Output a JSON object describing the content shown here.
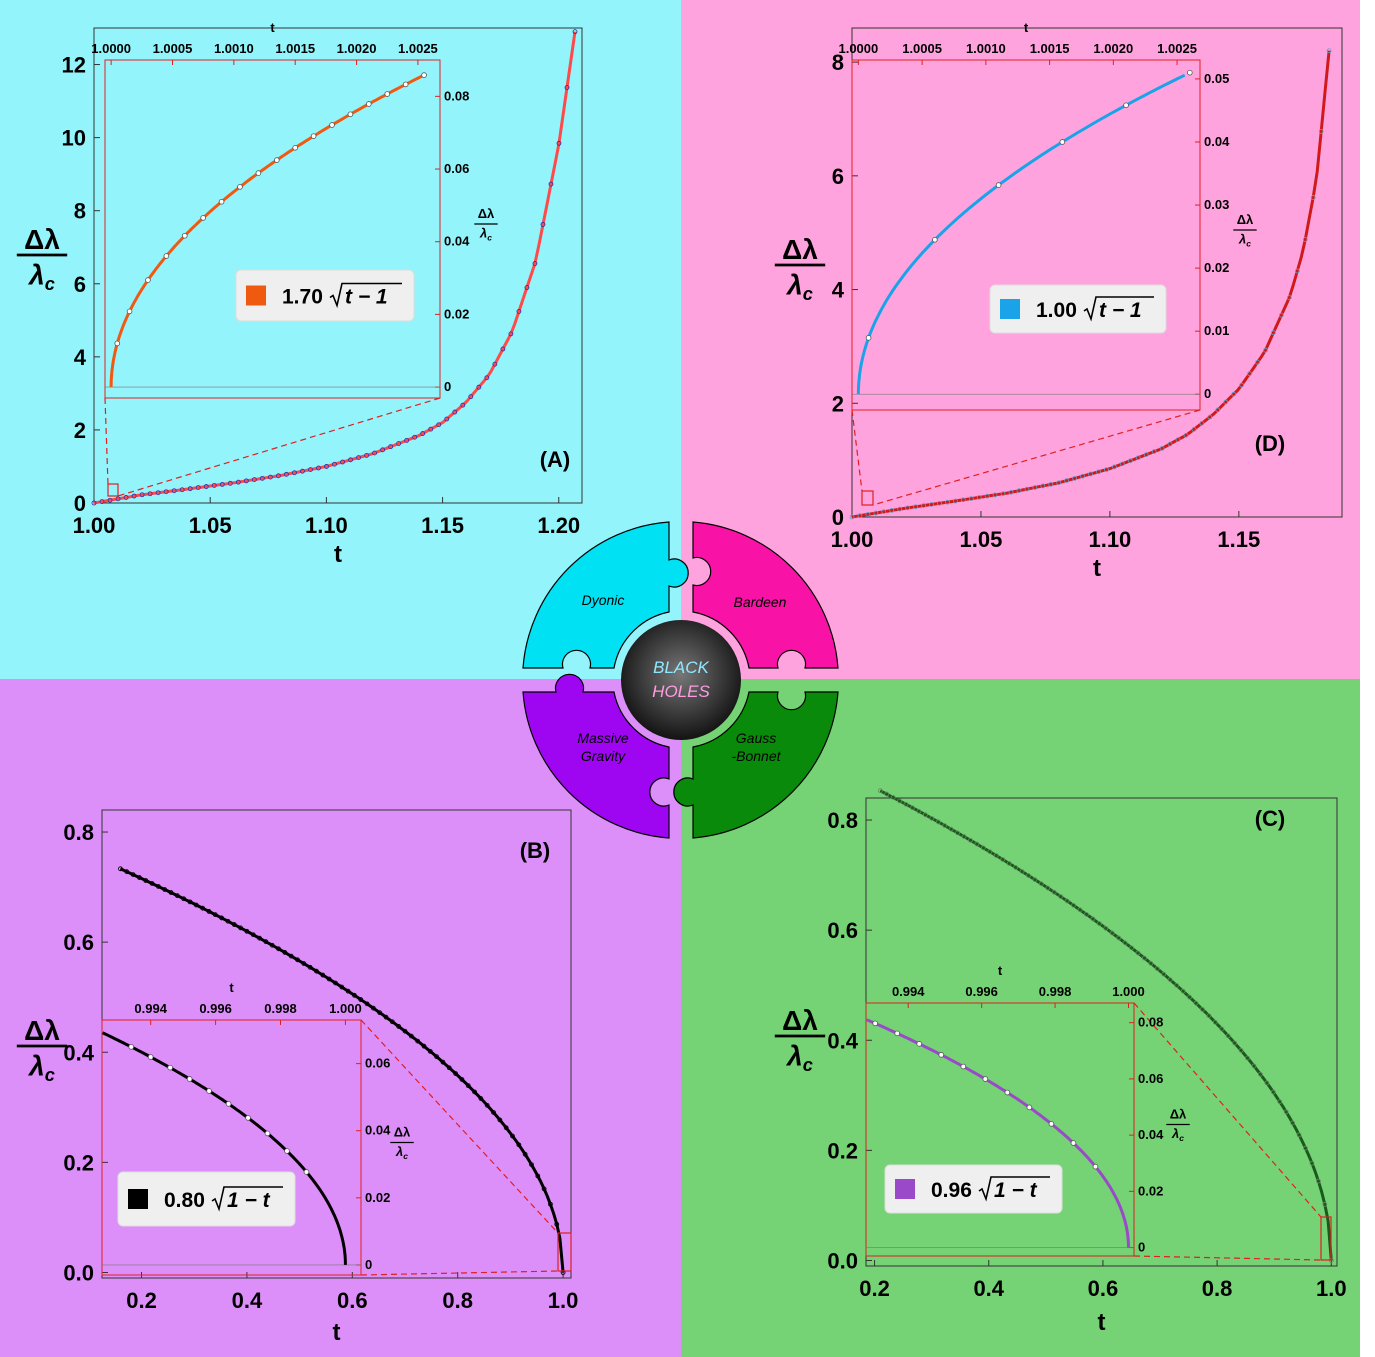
{
  "center": {
    "title_line1": "BLACK",
    "title_line2": "HOLES",
    "pieces": [
      {
        "label_lines": [
          "Dyonic"
        ],
        "color": "#00e1f4"
      },
      {
        "label_lines": [
          "Bardeen"
        ],
        "color": "#f812a6"
      },
      {
        "label_lines": [
          "Massive",
          "Gravity"
        ],
        "color": "#9e05f0"
      },
      {
        "label_lines": [
          "Gauss",
          "-Bonnet"
        ],
        "color": "#0a8a0a"
      }
    ]
  },
  "chart_data": [
    {
      "id": "A",
      "panel_label": "(A)",
      "type": "line",
      "xlabel": "t",
      "ylabel_top": "Δλ",
      "ylabel_bottom": "λc",
      "xlim": [
        1.0,
        1.21
      ],
      "ylim": [
        0,
        13
      ],
      "xticks": [
        1.0,
        1.05,
        1.1,
        1.15,
        1.2
      ],
      "xtick_labels": [
        "1.00",
        "1.05",
        "1.10",
        "1.15",
        "1.20"
      ],
      "yticks": [
        0,
        2,
        4,
        6,
        8,
        10,
        12
      ],
      "ytick_labels": [
        "0",
        "2",
        "4",
        "6",
        "8",
        "10",
        "12"
      ],
      "curve_color": "#ff4a4a",
      "point_color": "#2a2ab0",
      "x": [
        1.0,
        1.02,
        1.04,
        1.06,
        1.08,
        1.1,
        1.12,
        1.14,
        1.15,
        1.16,
        1.17,
        1.18,
        1.19,
        1.2,
        1.207
      ],
      "y": [
        0,
        0.22,
        0.38,
        0.55,
        0.75,
        1.0,
        1.35,
        1.85,
        2.2,
        2.75,
        3.5,
        4.7,
        6.6,
        9.8,
        12.9
      ],
      "inset": {
        "xlabel": "t",
        "ylabel_top": "Δλ",
        "ylabel_bottom": "λc",
        "xlim": [
          0.99995,
          1.00268
        ],
        "ylim": [
          -0.003,
          0.09
        ],
        "xticks": [
          1.0,
          1.0005,
          1.001,
          1.0015,
          1.002,
          1.0025
        ],
        "xtick_labels": [
          "1.0000",
          "1.0005",
          "1.0010",
          "1.0015",
          "1.0020",
          "1.0025"
        ],
        "yticks": [
          0,
          0.02,
          0.04,
          0.06,
          0.08
        ],
        "ytick_labels": [
          "0",
          "0.02",
          "0.04",
          "0.06",
          "0.08"
        ],
        "fit_coefficient": 1.7,
        "fit_form": "sqrt(t-1)",
        "legend_text": "1.70√t − 1",
        "legend_prefix": "1.70",
        "legend_radicand": "t − 1",
        "curve_color": "#f05a10",
        "legend_swatch_color": "#f05a10",
        "points_x": [
          1.00005,
          1.00015,
          1.0003,
          1.00045,
          1.0006,
          1.00075,
          1.0009,
          1.00105,
          1.0012,
          1.00135,
          1.0015,
          1.00165,
          1.0018,
          1.00195,
          1.0021,
          1.00225,
          1.0024,
          1.00255
        ]
      }
    },
    {
      "id": "D",
      "panel_label": "(D)",
      "type": "line",
      "xlabel": "t",
      "ylabel_top": "Δλ",
      "ylabel_bottom": "λc",
      "xlim": [
        1.0,
        1.19
      ],
      "ylim": [
        0,
        8.6
      ],
      "xticks": [
        1.0,
        1.05,
        1.1,
        1.15
      ],
      "xtick_labels": [
        "1.00",
        "1.05",
        "1.10",
        "1.15"
      ],
      "yticks": [
        0,
        2,
        4,
        6,
        8
      ],
      "ytick_labels": [
        "0",
        "2",
        "4",
        "6",
        "8"
      ],
      "curve_color": "#d01a1a",
      "point_color": "#60a0d0",
      "x": [
        1.0,
        1.02,
        1.04,
        1.06,
        1.08,
        1.1,
        1.12,
        1.13,
        1.14,
        1.15,
        1.16,
        1.17,
        1.175,
        1.18,
        1.185
      ],
      "y": [
        0,
        0.15,
        0.28,
        0.42,
        0.6,
        0.85,
        1.2,
        1.45,
        1.8,
        2.25,
        2.9,
        3.9,
        4.7,
        5.9,
        8.2
      ],
      "inset": {
        "xlabel": "t",
        "ylabel_top": "Δλ",
        "ylabel_bottom": "λc",
        "xlim": [
          0.99995,
          1.00268
        ],
        "ylim": [
          -0.0025,
          0.053
        ],
        "xticks": [
          1.0,
          1.0005,
          1.001,
          1.0015,
          1.002,
          1.0025
        ],
        "xtick_labels": [
          "1.0000",
          "1.0005",
          "1.0010",
          "1.0015",
          "1.0020",
          "1.0025"
        ],
        "yticks": [
          0,
          0.01,
          0.02,
          0.03,
          0.04,
          0.05
        ],
        "ytick_labels": [
          "0",
          "0.01",
          "0.02",
          "0.03",
          "0.04",
          "0.05"
        ],
        "fit_coefficient": 1.0,
        "fit_form": "sqrt(t-1)",
        "legend_text": "1.00√t − 1",
        "legend_prefix": "1.00",
        "legend_radicand": "t − 1",
        "curve_color": "#1aa3e8",
        "legend_swatch_color": "#1aa3e8",
        "points_x": [
          1.00008,
          1.0006,
          1.0011,
          1.0016,
          1.0021,
          1.0026
        ]
      }
    },
    {
      "id": "B",
      "panel_label": "(B)",
      "type": "line",
      "xlabel": "t",
      "ylabel_top": "Δλ",
      "ylabel_bottom": "λc",
      "xlim": [
        0.125,
        1.015
      ],
      "ylim": [
        -0.01,
        0.84
      ],
      "xticks": [
        0.2,
        0.4,
        0.6,
        0.8,
        1.0
      ],
      "xtick_labels": [
        "0.2",
        "0.4",
        "0.6",
        "0.8",
        "1.0"
      ],
      "yticks": [
        0,
        0.2,
        0.4,
        0.6,
        0.8
      ],
      "ytick_labels": [
        "0.0",
        "0.2",
        "0.4",
        "0.6",
        "0.8"
      ],
      "curve_color": "#000000",
      "point_color": "#000000",
      "fit_coefficient": 0.8,
      "x_start": 0.16,
      "x_end": 1.0,
      "inset": {
        "xlabel": "t",
        "ylabel_top": "Δλ",
        "ylabel_bottom": "λc",
        "xlim": [
          0.9925,
          1.00048
        ],
        "ylim": [
          -0.003,
          0.073
        ],
        "xticks": [
          0.994,
          0.996,
          0.998,
          1.0
        ],
        "xtick_labels": [
          "0.994",
          "0.996",
          "0.998",
          "1.000"
        ],
        "yticks": [
          0,
          0.02,
          0.04,
          0.06
        ],
        "ytick_labels": [
          "0",
          "0.02",
          "0.04",
          "0.06"
        ],
        "fit_coefficient": 0.8,
        "fit_form": "sqrt(1-t)",
        "legend_text": "0.80√1 − t",
        "legend_prefix": "0.80",
        "legend_radicand": "1 − t",
        "curve_color": "#000000",
        "legend_swatch_color": "#000000",
        "points_x": [
          0.9934,
          0.994,
          0.9946,
          0.9952,
          0.9958,
          0.9964,
          0.997,
          0.9976,
          0.9982,
          0.9988
        ]
      }
    },
    {
      "id": "C",
      "panel_label": "(C)",
      "type": "line",
      "xlabel": "t",
      "ylabel_top": "Δλ",
      "ylabel_bottom": "λc",
      "xlim": [
        0.185,
        1.01
      ],
      "ylim": [
        -0.01,
        0.84
      ],
      "xticks": [
        0.2,
        0.4,
        0.6,
        0.8,
        1.0
      ],
      "xtick_labels": [
        "0.2",
        "0.4",
        "0.6",
        "0.8",
        "1.0"
      ],
      "yticks": [
        0,
        0.2,
        0.4,
        0.6,
        0.8
      ],
      "ytick_labels": [
        "0.0",
        "0.2",
        "0.4",
        "0.6",
        "0.8"
      ],
      "curve_color": "#1a5a1a",
      "point_color": "#6a8a6a",
      "fit_coefficient": 0.96,
      "x_start": 0.21,
      "x_end": 1.0,
      "inset": {
        "xlabel": "t",
        "ylabel_top": "Δλ",
        "ylabel_bottom": "λc",
        "xlim": [
          0.99285,
          1.00015
        ],
        "ylim": [
          -0.003,
          0.087
        ],
        "xticks": [
          0.994,
          0.996,
          0.998,
          1.0
        ],
        "xtick_labels": [
          "0.994",
          "0.996",
          "0.998",
          "1.000"
        ],
        "yticks": [
          0,
          0.02,
          0.04,
          0.06,
          0.08
        ],
        "ytick_labels": [
          "0",
          "0.02",
          "0.04",
          "0.06",
          "0.08"
        ],
        "fit_coefficient": 0.96,
        "fit_form": "sqrt(1-t)",
        "legend_text": "0.96√1 − t",
        "legend_prefix": "0.96",
        "legend_radicand": "1 − t",
        "curve_color": "#9a4ac8",
        "legend_swatch_color": "#9a4ac8",
        "points_x": [
          0.9931,
          0.9937,
          0.9943,
          0.9949,
          0.9955,
          0.9961,
          0.9967,
          0.9973,
          0.9979,
          0.9985,
          0.9991
        ]
      }
    }
  ]
}
